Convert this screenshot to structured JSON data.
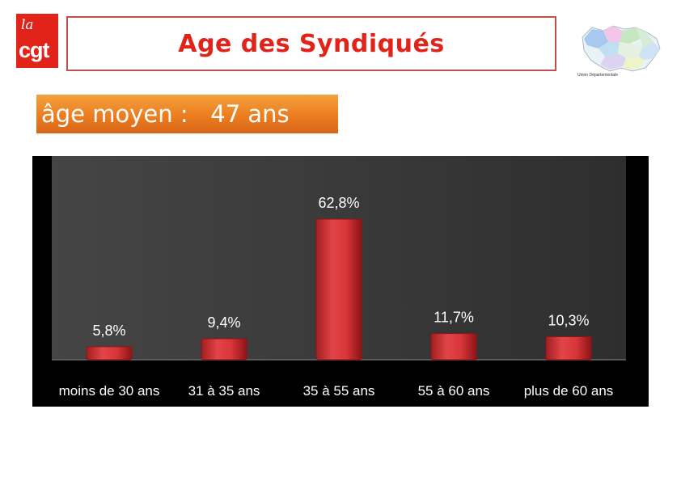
{
  "logo": {
    "line1": "la",
    "line2": "cgt"
  },
  "title": "Age des Syndiqués",
  "mean_age": "âge moyen :   47 ans",
  "map_caption": "Union Départementale",
  "chart_data": {
    "type": "bar",
    "categories": [
      "moins de 30 ans",
      "31 à 35 ans",
      "35 à 55 ans",
      "55 à 60 ans",
      "plus de  60 ans"
    ],
    "values": [
      5.8,
      9.4,
      62.8,
      11.7,
      10.3
    ],
    "data_labels": [
      "5,8%",
      "9,4%",
      "62,8%",
      "11,7%",
      "10,3%"
    ],
    "unit": "%",
    "ylim": [
      0,
      70
    ],
    "grid": false,
    "colors": {
      "bar": "#d9373a",
      "bar_edge": "#8e1416",
      "plot_bg": "#3a3a3a",
      "frame_bg": "#000000",
      "label": "#ffffff"
    }
  }
}
